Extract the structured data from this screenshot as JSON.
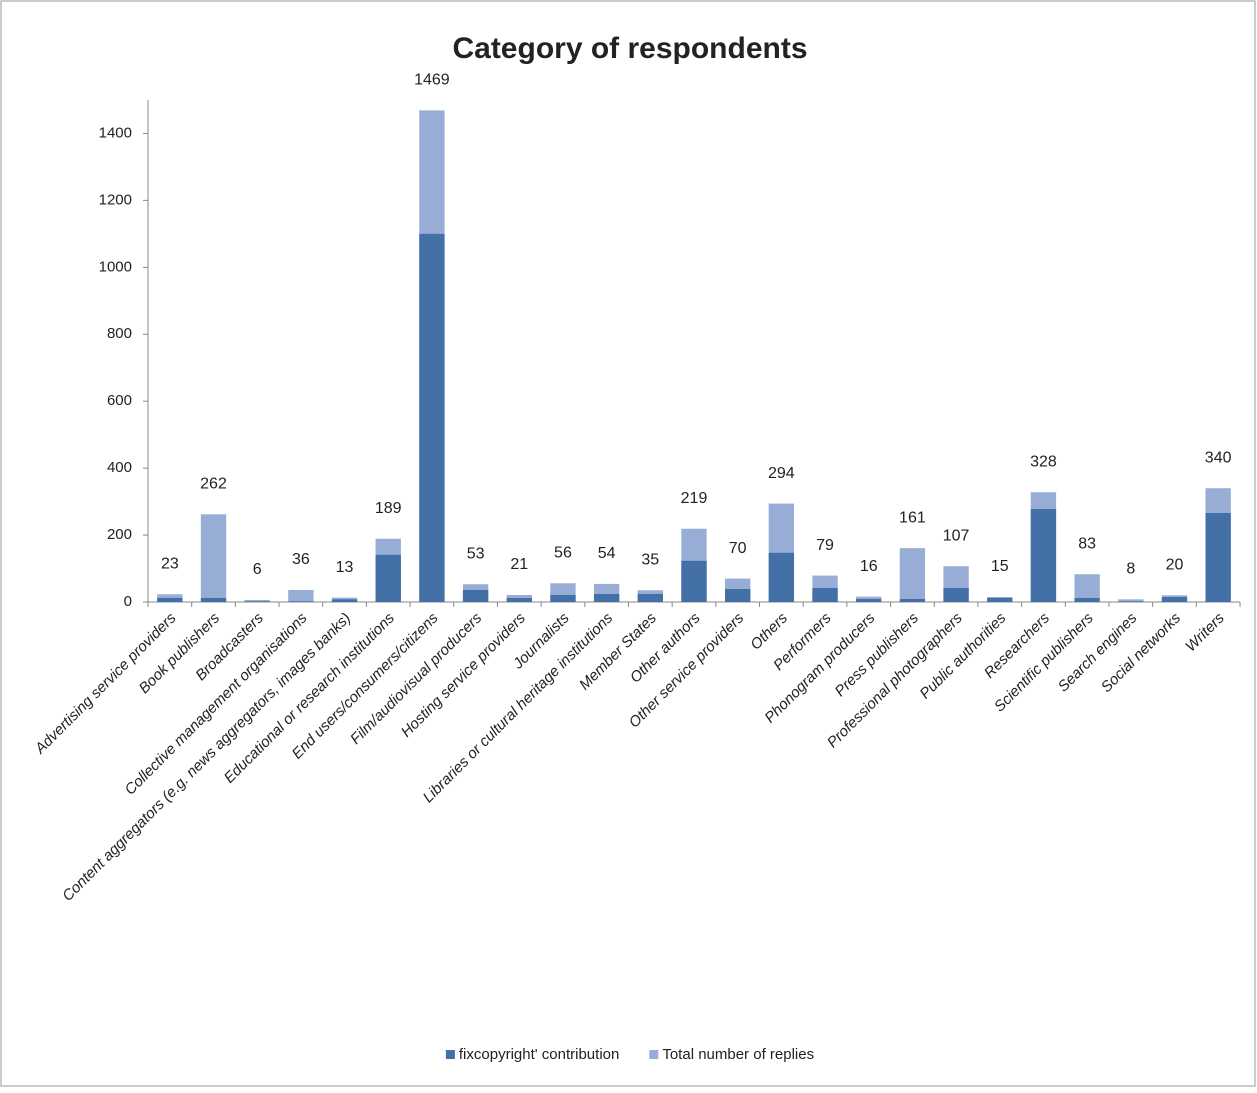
{
  "chart_data": {
    "type": "bar",
    "title": "Category of respondents",
    "categories": [
      "Advertising service providers",
      "Book publishers",
      "Broadcasters",
      "Collective management organisations",
      "Content aggregators (e.g. news aggregators, images banks)",
      "Educational or research institutions",
      "End users/consumers/citizens",
      "Film/audiovisual producers",
      "Hosting service providers",
      "Journalists",
      "Libraries or cultural heritage institutions",
      "Member States",
      "Other authors",
      "Other service providers",
      "Others",
      "Performers",
      "Phonogram producers",
      "Press publishers",
      "Professional photographers",
      "Public authorities",
      "Researchers",
      "Scientific publishers",
      "Search engines",
      "Social networks",
      "Writers"
    ],
    "series": [
      {
        "name": "fixcopyright' contribution",
        "color": "#4470a8",
        "values": [
          12,
          12,
          2,
          2,
          8,
          141,
          1100,
          36,
          12,
          21,
          24,
          24,
          123,
          39,
          147,
          42,
          9,
          9,
          42,
          12,
          278,
          12,
          2,
          15,
          266
        ]
      },
      {
        "name": "Total number of replies",
        "color": "#98add6",
        "values": [
          23,
          262,
          6,
          36,
          13,
          189,
          1469,
          53,
          21,
          56,
          54,
          35,
          219,
          70,
          294,
          79,
          16,
          161,
          107,
          15,
          328,
          83,
          8,
          20,
          340
        ]
      }
    ],
    "ylim": [
      0,
      1500
    ],
    "yticks": [
      0,
      200,
      400,
      600,
      800,
      1000,
      1200,
      1400
    ],
    "grid": false
  }
}
